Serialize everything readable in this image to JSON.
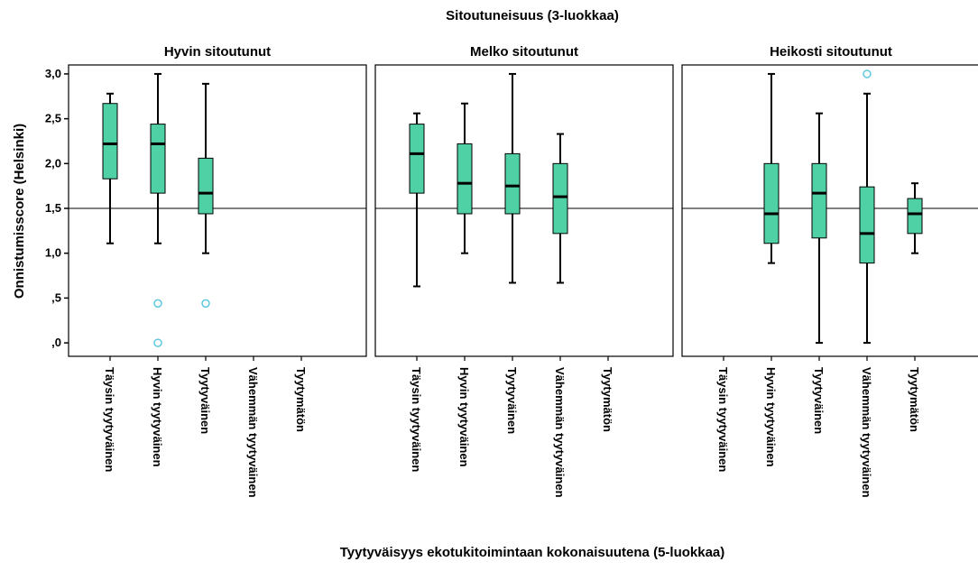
{
  "chart_data": {
    "type": "boxplot",
    "title": "Sitoutuneisuus (3-luokkaa)",
    "xlabel": "Tyytyväisyys ekotukitoimintaan kokonaisuutena (5-luokkaa)",
    "ylabel": "Onnistumisscore (Helsinki)",
    "ylim": [
      -0.15,
      3.1
    ],
    "yticks": [
      0,
      0.5,
      1.0,
      1.5,
      2.0,
      2.5,
      3.0
    ],
    "ytick_labels": [
      ",0",
      ",5",
      "1,0",
      "1,5",
      "2,0",
      "2,5",
      "3,0"
    ],
    "reference_line": 1.5,
    "categories": [
      "Täysin tyytyväinen",
      "Hyvin tyytyväinen",
      "Tyytyväinen",
      "Vähemmän tyytyväinen",
      "Tyytymätön"
    ],
    "colors": {
      "box_fill": "#4fd1a5",
      "outlier": "#5ec8e0",
      "line": "#000000"
    },
    "panels": [
      {
        "title": "Hyvin sitoutunut",
        "boxes": [
          {
            "category": "Täysin tyytyväinen",
            "whisker_low": 1.11,
            "q1": 1.83,
            "median": 2.22,
            "q3": 2.67,
            "whisker_high": 2.78,
            "outliers": []
          },
          {
            "category": "Hyvin tyytyväinen",
            "whisker_low": 1.11,
            "q1": 1.67,
            "median": 2.22,
            "q3": 2.44,
            "whisker_high": 3.0,
            "outliers": [
              0.44,
              0.0
            ]
          },
          {
            "category": "Tyytyväinen",
            "whisker_low": 1.0,
            "q1": 1.44,
            "median": 1.67,
            "q3": 2.06,
            "whisker_high": 2.89,
            "outliers": [
              0.44
            ]
          },
          null,
          null
        ]
      },
      {
        "title": "Melko sitoutunut",
        "boxes": [
          {
            "category": "Täysin tyytyväinen",
            "whisker_low": 0.63,
            "q1": 1.67,
            "median": 2.11,
            "q3": 2.44,
            "whisker_high": 2.56,
            "outliers": []
          },
          {
            "category": "Hyvin tyytyväinen",
            "whisker_low": 1.0,
            "q1": 1.44,
            "median": 1.78,
            "q3": 2.22,
            "whisker_high": 2.67,
            "outliers": []
          },
          {
            "category": "Tyytyväinen",
            "whisker_low": 0.67,
            "q1": 1.44,
            "median": 1.75,
            "q3": 2.11,
            "whisker_high": 3.0,
            "outliers": []
          },
          {
            "category": "Vähemmän tyytyväinen",
            "whisker_low": 0.67,
            "q1": 1.22,
            "median": 1.63,
            "q3": 2.0,
            "whisker_high": 2.33,
            "outliers": []
          },
          null
        ]
      },
      {
        "title": "Heikosti sitoutunut",
        "boxes": [
          null,
          {
            "category": "Hyvin tyytyväinen",
            "whisker_low": 0.89,
            "q1": 1.11,
            "median": 1.44,
            "q3": 2.0,
            "whisker_high": 3.0,
            "outliers": []
          },
          {
            "category": "Tyytyväinen",
            "whisker_low": 0.0,
            "q1": 1.17,
            "median": 1.67,
            "q3": 2.0,
            "whisker_high": 2.56,
            "outliers": []
          },
          {
            "category": "Vähemmän tyytyväinen",
            "whisker_low": 0.0,
            "q1": 0.89,
            "median": 1.22,
            "q3": 1.74,
            "whisker_high": 2.78,
            "outliers": [
              3.0
            ]
          },
          {
            "category": "Tyytymätön",
            "whisker_low": 1.0,
            "q1": 1.22,
            "median": 1.44,
            "q3": 1.61,
            "whisker_high": 1.78,
            "outliers": []
          }
        ]
      }
    ]
  }
}
